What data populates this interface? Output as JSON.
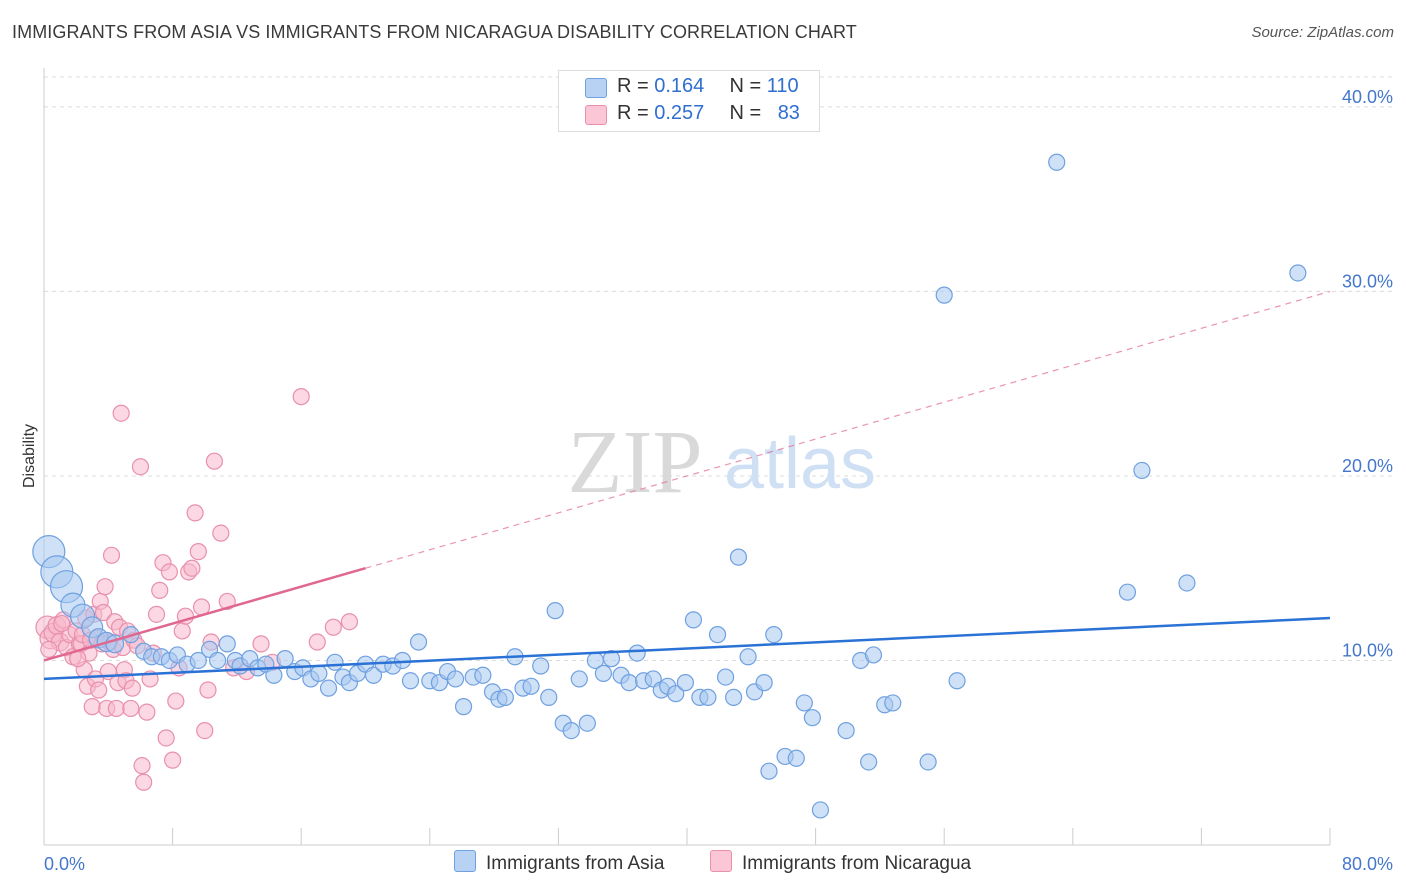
{
  "title": "IMMIGRANTS FROM ASIA VS IMMIGRANTS FROM NICARAGUA DISABILITY CORRELATION CHART",
  "source": "Source: ZipAtlas.com",
  "watermark": {
    "zip": "ZIP",
    "atlas": "atlas"
  },
  "legend": {
    "rows": [
      {
        "r_label": "R = ",
        "r_value": "0.164",
        "n_label": "N = ",
        "n_value": "110",
        "color": "#a8c8f0"
      },
      {
        "r_label": "R = ",
        "r_value": "0.257",
        "n_label": "N = ",
        "n_value": "83",
        "color": "#f8b8cc"
      }
    ]
  },
  "bottom_legend": [
    {
      "label": "Immigrants from Asia",
      "color": "#a8c8f0"
    },
    {
      "label": "Immigrants from Nicaragua",
      "color": "#f8b8cc"
    }
  ],
  "chart_data": {
    "type": "scatter",
    "title": "IMMIGRANTS FROM ASIA VS IMMIGRANTS FROM NICARAGUA DISABILITY CORRELATION CHART",
    "xlabel": "",
    "ylabel": "Disability",
    "xlim": [
      0,
      80
    ],
    "ylim": [
      0,
      42
    ],
    "x_tick_labels": [
      "0.0%",
      "80.0%"
    ],
    "y_ticks": [
      10,
      20,
      30,
      40
    ],
    "y_tick_labels": [
      "10.0%",
      "20.0%",
      "30.0%",
      "40.0%"
    ],
    "grid": "horizontal dashed",
    "legend_placement": "top-center",
    "series": [
      {
        "name": "Immigrants from Asia",
        "color": "#6fa0e0",
        "fill": "#a8c8f0",
        "trend": {
          "x": [
            0,
            80
          ],
          "y": [
            9.0,
            12.3
          ],
          "style": "solid",
          "color": "#2b72d6"
        },
        "points": [
          [
            0.3,
            15.9,
            2
          ],
          [
            0.8,
            14.8,
            2
          ],
          [
            1.4,
            14.0,
            2
          ],
          [
            1.8,
            13.0,
            1.5
          ],
          [
            2.4,
            12.4,
            1.5
          ],
          [
            3.0,
            11.8,
            1.3
          ],
          [
            3.4,
            11.2,
            1.2
          ],
          [
            3.9,
            11.0,
            1.2
          ],
          [
            4.4,
            10.9,
            1.1
          ],
          [
            5.4,
            11.4,
            1
          ],
          [
            6.2,
            10.5,
            1
          ],
          [
            6.7,
            10.2,
            1
          ],
          [
            7.3,
            10.2,
            1
          ],
          [
            7.8,
            10.0,
            1
          ],
          [
            8.3,
            10.3,
            1
          ],
          [
            8.9,
            9.8,
            1
          ],
          [
            9.6,
            10.0,
            1
          ],
          [
            10.3,
            10.6,
            1
          ],
          [
            10.8,
            10.0,
            1
          ],
          [
            11.4,
            10.9,
            1
          ],
          [
            11.9,
            10.0,
            1
          ],
          [
            12.2,
            9.7,
            1
          ],
          [
            12.8,
            10.1,
            1
          ],
          [
            13.3,
            9.6,
            1
          ],
          [
            13.8,
            9.8,
            1
          ],
          [
            14.3,
            9.2,
            1
          ],
          [
            15.0,
            10.1,
            1
          ],
          [
            15.6,
            9.4,
            1
          ],
          [
            16.1,
            9.6,
            1
          ],
          [
            16.6,
            9.0,
            1
          ],
          [
            17.1,
            9.3,
            1
          ],
          [
            17.7,
            8.5,
            1
          ],
          [
            18.1,
            9.9,
            1
          ],
          [
            18.6,
            9.1,
            1
          ],
          [
            19.0,
            8.8,
            1
          ],
          [
            19.5,
            9.3,
            1
          ],
          [
            20.0,
            9.8,
            1
          ],
          [
            20.5,
            9.2,
            1
          ],
          [
            21.1,
            9.8,
            1
          ],
          [
            21.7,
            9.7,
            1
          ],
          [
            22.3,
            10.0,
            1
          ],
          [
            22.8,
            8.9,
            1
          ],
          [
            23.3,
            11.0,
            1
          ],
          [
            24.0,
            8.9,
            1
          ],
          [
            24.6,
            8.8,
            1
          ],
          [
            25.1,
            9.4,
            1
          ],
          [
            25.6,
            9.0,
            1
          ],
          [
            26.1,
            7.5,
            1
          ],
          [
            26.7,
            9.1,
            1
          ],
          [
            27.3,
            9.2,
            1
          ],
          [
            27.9,
            8.3,
            1
          ],
          [
            28.3,
            7.9,
            1
          ],
          [
            28.7,
            8.0,
            1
          ],
          [
            29.3,
            10.2,
            1
          ],
          [
            29.8,
            8.5,
            1
          ],
          [
            30.3,
            8.6,
            1
          ],
          [
            30.9,
            9.7,
            1
          ],
          [
            31.4,
            8.0,
            1
          ],
          [
            31.8,
            12.7,
            1
          ],
          [
            32.3,
            6.6,
            1
          ],
          [
            32.8,
            6.2,
            1
          ],
          [
            33.3,
            9.0,
            1
          ],
          [
            33.8,
            6.6,
            1
          ],
          [
            34.3,
            10.0,
            1
          ],
          [
            34.8,
            9.3,
            1
          ],
          [
            35.3,
            10.1,
            1
          ],
          [
            35.9,
            9.2,
            1
          ],
          [
            36.4,
            8.8,
            1
          ],
          [
            36.9,
            10.4,
            1
          ],
          [
            37.3,
            8.9,
            1
          ],
          [
            37.9,
            9.0,
            1
          ],
          [
            38.4,
            8.4,
            1
          ],
          [
            38.8,
            8.6,
            1
          ],
          [
            39.3,
            8.2,
            1
          ],
          [
            39.9,
            8.8,
            1
          ],
          [
            40.4,
            12.2,
            1
          ],
          [
            40.8,
            8.0,
            1
          ],
          [
            41.3,
            8.0,
            1
          ],
          [
            41.9,
            11.4,
            1
          ],
          [
            42.4,
            9.1,
            1
          ],
          [
            42.9,
            8.0,
            1
          ],
          [
            43.2,
            15.6,
            1
          ],
          [
            43.8,
            10.2,
            1
          ],
          [
            44.2,
            8.3,
            1
          ],
          [
            44.8,
            8.8,
            1
          ],
          [
            45.1,
            4.0,
            1
          ],
          [
            45.4,
            11.4,
            1
          ],
          [
            46.1,
            4.8,
            1
          ],
          [
            46.8,
            4.7,
            1
          ],
          [
            47.3,
            7.7,
            1
          ],
          [
            47.8,
            6.9,
            1
          ],
          [
            48.3,
            1.9,
            1
          ],
          [
            49.9,
            6.2,
            1
          ],
          [
            50.8,
            10.0,
            1
          ],
          [
            51.3,
            4.5,
            1
          ],
          [
            51.6,
            10.3,
            1
          ],
          [
            52.3,
            7.6,
            1
          ],
          [
            52.8,
            7.7,
            1
          ],
          [
            55.0,
            4.5,
            1
          ],
          [
            56.0,
            29.8,
            1
          ],
          [
            56.8,
            8.9,
            1
          ],
          [
            63.0,
            37.0,
            1
          ],
          [
            67.4,
            13.7,
            1
          ],
          [
            68.3,
            20.3,
            1
          ],
          [
            71.1,
            14.2,
            1
          ],
          [
            78.0,
            31.0,
            1
          ]
        ]
      },
      {
        "name": "Immigrants from Nicaragua",
        "color": "#e890ac",
        "fill": "#f8b8cc",
        "trend": {
          "x": [
            0,
            20.0,
            80
          ],
          "y": [
            10.0,
            15.0,
            30.0
          ],
          "solid_until": 20.0,
          "style": "solid then dashed",
          "color": "#e06890"
        },
        "points": [
          [
            0.2,
            11.8,
            1.4
          ],
          [
            0.4,
            11.2,
            1.3
          ],
          [
            0.6,
            11.5,
            1.2
          ],
          [
            0.8,
            11.9,
            1.1
          ],
          [
            1.0,
            11.0,
            1.1
          ],
          [
            1.2,
            12.2,
            1
          ],
          [
            1.4,
            10.7,
            1
          ],
          [
            1.6,
            11.4,
            1
          ],
          [
            1.8,
            10.2,
            1
          ],
          [
            2.0,
            11.6,
            1
          ],
          [
            2.2,
            10.9,
            1
          ],
          [
            2.3,
            10.9,
            1
          ],
          [
            2.4,
            11.4,
            1
          ],
          [
            2.5,
            9.5,
            1
          ],
          [
            2.6,
            12.3,
            1
          ],
          [
            2.7,
            8.6,
            1
          ],
          [
            2.8,
            10.4,
            1
          ],
          [
            2.9,
            11.1,
            1
          ],
          [
            3.0,
            7.5,
            1
          ],
          [
            3.1,
            12.5,
            1
          ],
          [
            3.2,
            9.0,
            1
          ],
          [
            3.3,
            11.2,
            1
          ],
          [
            3.4,
            8.4,
            1
          ],
          [
            3.5,
            13.2,
            1
          ],
          [
            3.6,
            10.9,
            1
          ],
          [
            3.7,
            12.6,
            1
          ],
          [
            3.8,
            14.0,
            1
          ],
          [
            3.9,
            7.4,
            1
          ],
          [
            4.0,
            9.4,
            1
          ],
          [
            4.1,
            11.0,
            1
          ],
          [
            4.2,
            15.7,
            1
          ],
          [
            4.3,
            10.6,
            1
          ],
          [
            4.4,
            12.1,
            1
          ],
          [
            4.5,
            7.4,
            1
          ],
          [
            4.6,
            8.8,
            1
          ],
          [
            4.7,
            11.8,
            1
          ],
          [
            4.8,
            23.4,
            1
          ],
          [
            4.9,
            10.7,
            1
          ],
          [
            5.0,
            9.5,
            1
          ],
          [
            5.1,
            8.9,
            1
          ],
          [
            5.2,
            11.6,
            1
          ],
          [
            5.4,
            7.4,
            1
          ],
          [
            5.5,
            8.5,
            1
          ],
          [
            5.6,
            11.1,
            1
          ],
          [
            5.8,
            10.8,
            1
          ],
          [
            6.0,
            20.5,
            1
          ],
          [
            6.1,
            4.3,
            1
          ],
          [
            6.2,
            3.4,
            1
          ],
          [
            6.4,
            7.2,
            1
          ],
          [
            6.6,
            9.0,
            1
          ],
          [
            6.8,
            10.4,
            1
          ],
          [
            7.0,
            12.5,
            1
          ],
          [
            7.2,
            13.8,
            1
          ],
          [
            7.4,
            15.3,
            1
          ],
          [
            7.6,
            5.8,
            1
          ],
          [
            7.8,
            14.8,
            1
          ],
          [
            8.0,
            4.6,
            1
          ],
          [
            8.2,
            7.8,
            1
          ],
          [
            8.4,
            9.6,
            1
          ],
          [
            8.6,
            11.6,
            1
          ],
          [
            8.8,
            12.4,
            1
          ],
          [
            9.0,
            14.8,
            1
          ],
          [
            9.2,
            15.0,
            1
          ],
          [
            9.4,
            18.0,
            1
          ],
          [
            9.6,
            15.9,
            1
          ],
          [
            9.8,
            12.9,
            1
          ],
          [
            10.0,
            6.2,
            1
          ],
          [
            10.2,
            8.4,
            1
          ],
          [
            10.4,
            11.0,
            1
          ],
          [
            10.6,
            20.8,
            1
          ],
          [
            11.0,
            16.9,
            1
          ],
          [
            11.4,
            13.2,
            1
          ],
          [
            11.8,
            9.6,
            1
          ],
          [
            12.6,
            9.4,
            1
          ],
          [
            13.5,
            10.9,
            1
          ],
          [
            14.2,
            9.9,
            1
          ],
          [
            16.0,
            24.3,
            1
          ],
          [
            17.0,
            11.0,
            1
          ],
          [
            18.0,
            11.8,
            1
          ],
          [
            19.0,
            12.1,
            1
          ],
          [
            0.3,
            10.6,
            1
          ],
          [
            1.1,
            12.0,
            1
          ],
          [
            2.1,
            10.1,
            1
          ]
        ]
      }
    ]
  }
}
